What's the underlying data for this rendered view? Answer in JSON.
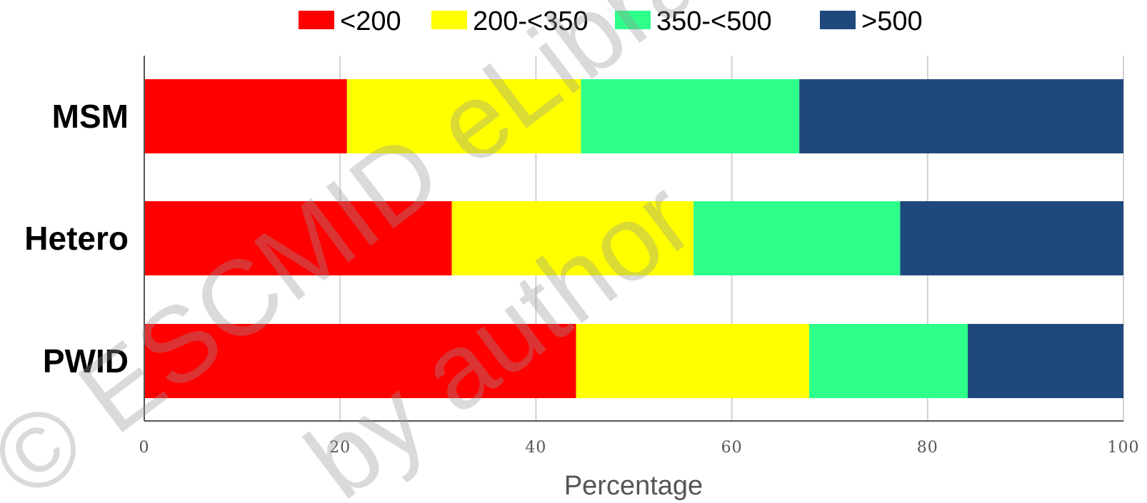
{
  "chart_data": {
    "type": "bar",
    "orientation": "horizontal",
    "stacked": true,
    "categories": [
      "MSM",
      "Hetero",
      "PWID"
    ],
    "series": [
      {
        "name": "<200",
        "color": "#ff0000",
        "values": [
          20.7,
          31.4,
          44.1
        ]
      },
      {
        "name": "200-<350",
        "color": "#ffff00",
        "values": [
          23.9,
          24.7,
          23.8
        ]
      },
      {
        "name": "350-<500",
        "color": "#2eff8a",
        "values": [
          22.3,
          21.1,
          16.2
        ]
      },
      {
        "name": ">500",
        "color": "#1f497d",
        "values": [
          33.1,
          22.8,
          15.9
        ]
      }
    ],
    "xlabel": "Percentage",
    "xlim": [
      0,
      100
    ],
    "xticks": [
      "0",
      "20",
      "40",
      "60",
      "80",
      "100"
    ],
    "grid": "vertical",
    "legend_position": "top-center"
  },
  "watermark": {
    "line1": "© ESCMID eLibrary",
    "line2": "by author"
  }
}
